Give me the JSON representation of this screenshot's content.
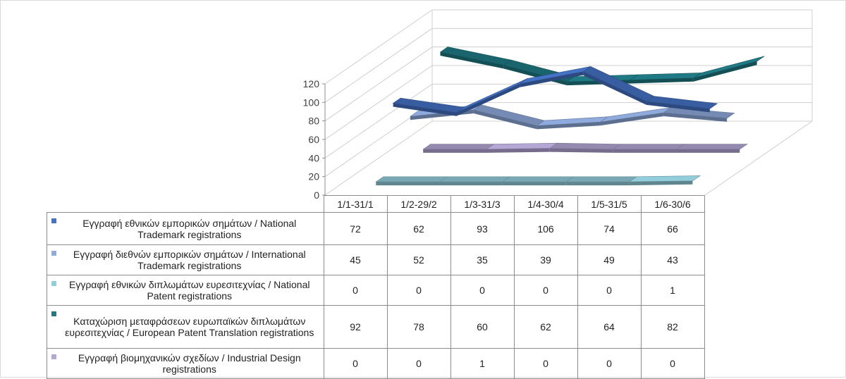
{
  "chart_data": {
    "type": "line",
    "title": "",
    "xlabel": "",
    "ylabel": "",
    "ylim": [
      0,
      120
    ],
    "yticks": [
      0,
      20,
      40,
      60,
      80,
      100,
      120
    ],
    "gridlines": true,
    "legend_placement": "data-table",
    "categories": [
      "1/1-31/1",
      "1/2-29/2",
      "1/3-31/3",
      "1/4-30/4",
      "1/5-31/5",
      "1/6-30/6"
    ],
    "series": [
      {
        "name": "Εγγραφή εθνικών εμπορικών σημάτων / National Trademark registrations",
        "color": "#4472c4",
        "values": [
          72,
          62,
          93,
          106,
          74,
          66
        ]
      },
      {
        "name": "Εγγραφή διεθνών εμπορικών σημάτων / International Trademark registrations",
        "color": "#8faadc",
        "values": [
          45,
          52,
          35,
          39,
          49,
          43
        ]
      },
      {
        "name": "Εγγραφή εθνικών διπλωμάτων ευρεσιτεχνίας / National Patent registrations",
        "color": "#92cddc",
        "values": [
          0,
          0,
          0,
          0,
          0,
          1
        ]
      },
      {
        "name": "Καταχώριση μεταφράσεων ευρωπαϊκών διπλωμάτων ευρεσιτεχνίας / European Patent Translation registrations",
        "color": "#1f7a85",
        "values": [
          92,
          78,
          60,
          62,
          64,
          82
        ]
      },
      {
        "name": "Εγγραφή βιομηχανικών σχεδίων / Industrial Design registrations",
        "color": "#b4a7d6",
        "values": [
          0,
          0,
          1,
          0,
          0,
          0
        ]
      }
    ]
  }
}
